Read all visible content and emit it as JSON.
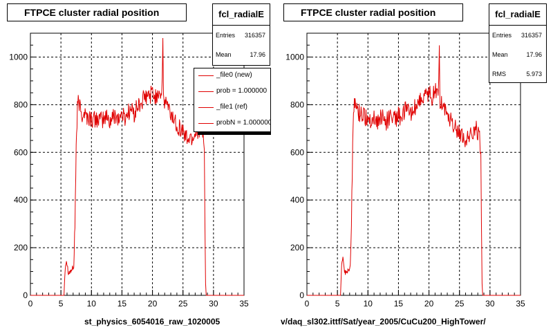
{
  "chart_data": [
    {
      "type": "line",
      "title": "FTPCE cluster radial position",
      "xlabel": "st_physics_6054016_raw_1020005",
      "ylabel": "",
      "xlim": [
        0,
        35
      ],
      "ylim": [
        0,
        1100
      ],
      "xticks": [
        0,
        5,
        10,
        15,
        20,
        25,
        30,
        35
      ],
      "yticks": [
        0,
        200,
        400,
        600,
        800,
        1000
      ],
      "grid": true,
      "series": [
        {
          "color": "#e00000",
          "x": [
            0,
            5.5,
            5.7,
            5.9,
            6.1,
            6.3,
            6.5,
            6.7,
            6.9,
            7.1,
            7.3,
            7.5,
            7.7,
            7.9,
            8.1,
            8.4,
            8.8,
            9.2,
            9.6,
            10,
            10.5,
            11,
            11.5,
            12,
            12.5,
            13,
            13.5,
            14,
            14.5,
            15,
            15.5,
            16,
            16.5,
            17,
            17.5,
            18,
            18.5,
            19,
            19.5,
            20,
            20.5,
            21,
            21.5,
            21.7,
            21.8,
            21.9,
            22.2,
            22.5,
            23,
            23.5,
            24,
            24.5,
            25,
            25.5,
            26,
            26.5,
            27,
            27.5,
            28,
            28.3,
            28.5,
            28.7,
            28.8,
            29,
            35
          ],
          "y": [
            0,
            0,
            120,
            150,
            115,
            95,
            100,
            105,
            110,
            120,
            300,
            620,
            780,
            820,
            790,
            760,
            770,
            750,
            745,
            740,
            735,
            745,
            730,
            740,
            750,
            730,
            745,
            760,
            740,
            760,
            745,
            770,
            780,
            760,
            790,
            800,
            820,
            830,
            840,
            850,
            830,
            860,
            840,
            1040,
            820,
            800,
            820,
            790,
            760,
            740,
            720,
            700,
            690,
            660,
            660,
            660,
            680,
            700,
            690,
            660,
            600,
            50,
            0,
            0,
            0
          ]
        }
      ],
      "stats": {
        "name": "fcl_radialE",
        "rows": [
          {
            "label": "Entries",
            "value": "316357"
          },
          {
            "label": "Mean",
            "value": "17.96"
          }
        ]
      },
      "legend": {
        "placement": "top-right",
        "entries": [
          "_file0 (new)",
          "prob = 1.000000",
          "_file1 (ref)",
          "probN = 1.000000"
        ]
      }
    },
    {
      "type": "line",
      "title": "FTPCE cluster radial position",
      "xlabel": "v/daq_sl302.ittf/Sat/year_2005/CuCu200_HighTower/",
      "ylabel": "",
      "xlim": [
        0,
        35
      ],
      "ylim": [
        0,
        1100
      ],
      "xticks": [
        0,
        5,
        10,
        15,
        20,
        25,
        30,
        35
      ],
      "yticks": [
        0,
        200,
        400,
        600,
        800,
        1000
      ],
      "grid": true,
      "series": [
        {
          "color": "#e00000",
          "x": [
            0,
            5.5,
            5.7,
            5.9,
            6.1,
            6.3,
            6.5,
            6.7,
            6.9,
            7.1,
            7.3,
            7.5,
            7.7,
            7.9,
            8.1,
            8.4,
            8.8,
            9.2,
            9.6,
            10,
            10.5,
            11,
            11.5,
            12,
            12.5,
            13,
            13.5,
            14,
            14.5,
            15,
            15.5,
            16,
            16.5,
            17,
            17.5,
            18,
            18.5,
            19,
            19.5,
            20,
            20.5,
            21,
            21.5,
            21.7,
            21.8,
            21.9,
            22.2,
            22.5,
            23,
            23.5,
            24,
            24.5,
            25,
            25.5,
            26,
            26.5,
            27,
            27.5,
            28,
            28.3,
            28.5,
            28.7,
            28.8,
            29,
            35
          ],
          "y": [
            0,
            0,
            120,
            150,
            115,
            95,
            100,
            105,
            110,
            120,
            300,
            620,
            780,
            820,
            790,
            760,
            770,
            750,
            745,
            740,
            735,
            745,
            730,
            740,
            750,
            730,
            745,
            760,
            740,
            760,
            745,
            770,
            780,
            760,
            790,
            800,
            820,
            830,
            840,
            850,
            830,
            860,
            840,
            1040,
            820,
            800,
            820,
            790,
            760,
            740,
            720,
            700,
            690,
            660,
            660,
            660,
            680,
            700,
            690,
            660,
            600,
            50,
            0,
            0,
            0
          ]
        }
      ],
      "stats": {
        "name": "fcl_radialE",
        "rows": [
          {
            "label": "Entries",
            "value": "316357"
          },
          {
            "label": "Mean",
            "value": "17.96"
          },
          {
            "label": "RMS",
            "value": "5.973"
          }
        ]
      }
    }
  ]
}
